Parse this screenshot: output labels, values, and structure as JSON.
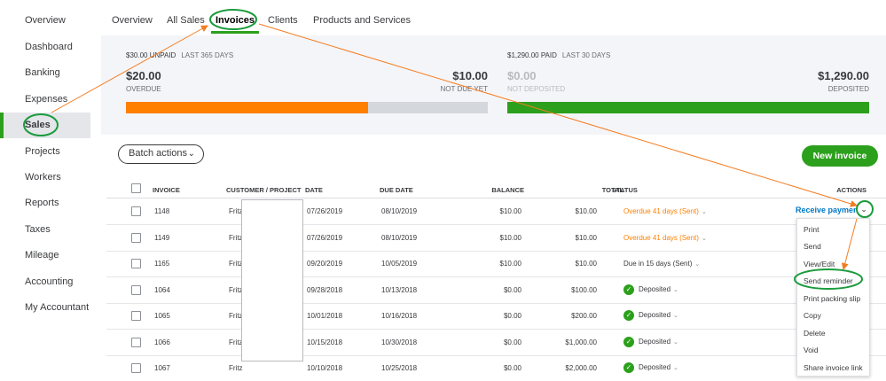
{
  "sidebar": {
    "items": [
      {
        "label": "Overview"
      },
      {
        "label": "Dashboard"
      },
      {
        "label": "Banking"
      },
      {
        "label": "Expenses"
      },
      {
        "label": "Sales"
      },
      {
        "label": "Projects"
      },
      {
        "label": "Workers"
      },
      {
        "label": "Reports"
      },
      {
        "label": "Taxes"
      },
      {
        "label": "Mileage"
      },
      {
        "label": "Accounting"
      },
      {
        "label": "My Accountant"
      }
    ],
    "active": "Sales"
  },
  "tabs": [
    {
      "label": "Overview"
    },
    {
      "label": "All Sales"
    },
    {
      "label": "Invoices"
    },
    {
      "label": "Clients"
    },
    {
      "label": "Products and Services"
    }
  ],
  "summary": {
    "unpaid": {
      "amount": "$30.00 UNPAID",
      "period": "LAST 365 DAYS",
      "overdue_value": "$20.00",
      "overdue_label": "OVERDUE",
      "notdue_value": "$10.00",
      "notdue_label": "NOT DUE YET",
      "overdue_color": "#ff8000",
      "notdue_color": "#d4d7dc"
    },
    "paid": {
      "amount": "$1,290.00 PAID",
      "period": "LAST 30 DAYS",
      "notdeposited_value": "$0.00",
      "notdeposited_label": "NOT DEPOSITED",
      "deposited_value": "$1,290.00",
      "deposited_label": "DEPOSITED",
      "deposited_color": "#2ca01c"
    }
  },
  "toolbar": {
    "batch_label": "Batch actions",
    "new_invoice_label": "New invoice"
  },
  "table": {
    "headers": {
      "invoice": "INVOICE",
      "customer": "CUSTOMER / PROJECT",
      "date": "DATE",
      "due_date": "DUE DATE",
      "balance": "BALANCE",
      "total": "TOTAL",
      "status": "STATUS",
      "actions": "ACTIONS"
    },
    "rows": [
      {
        "invoice": "1148",
        "customer": "Fritz",
        "date": "07/26/2019",
        "due": "08/10/2019",
        "balance": "$10.00",
        "total": "$10.00",
        "status": "Overdue 41 days (Sent)",
        "status_type": "overdue"
      },
      {
        "invoice": "1149",
        "customer": "Fritz",
        "date": "07/26/2019",
        "due": "08/10/2019",
        "balance": "$10.00",
        "total": "$10.00",
        "status": "Overdue 41 days (Sent)",
        "status_type": "overdue"
      },
      {
        "invoice": "1165",
        "customer": "Fritz",
        "date": "09/20/2019",
        "due": "10/05/2019",
        "balance": "$10.00",
        "total": "$10.00",
        "status": "Due in 15 days (Sent)",
        "status_type": "due"
      },
      {
        "invoice": "1064",
        "customer": "Fritz",
        "date": "09/28/2018",
        "due": "10/13/2018",
        "balance": "$0.00",
        "total": "$100.00",
        "status": "Deposited",
        "status_type": "deposited"
      },
      {
        "invoice": "1065",
        "customer": "Fritz",
        "date": "10/01/2018",
        "due": "10/16/2018",
        "balance": "$0.00",
        "total": "$200.00",
        "status": "Deposited",
        "status_type": "deposited"
      },
      {
        "invoice": "1066",
        "customer": "Fritz",
        "date": "10/15/2018",
        "due": "10/30/2018",
        "balance": "$0.00",
        "total": "$1,000.00",
        "status": "Deposited",
        "status_type": "deposited"
      },
      {
        "invoice": "1067",
        "customer": "Fritz",
        "date": "10/10/2018",
        "due": "10/25/2018",
        "balance": "$0.00",
        "total": "$2,000.00",
        "status": "Deposited",
        "status_type": "deposited"
      }
    ]
  },
  "actions": {
    "receive_payment_label": "Receive paymen",
    "menu": [
      "Print",
      "Send",
      "View/Edit",
      "Send reminder",
      "Print packing slip",
      "Copy",
      "Delete",
      "Void",
      "Share invoice link"
    ]
  },
  "icons": {
    "chevron": "chevron-down-icon",
    "deposited": "check-circle-icon"
  },
  "annotation_color": "#f47c20",
  "highlight_color": "#1a9b3c"
}
